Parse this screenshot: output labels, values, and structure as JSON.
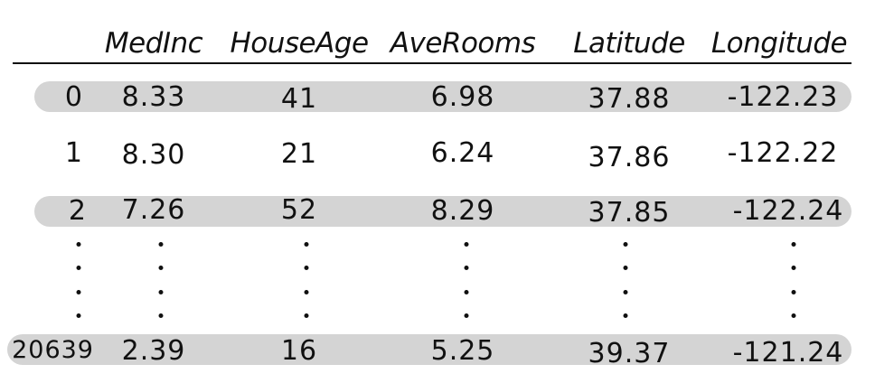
{
  "columns": [
    "MedInc",
    "HouseAge",
    "AveRooms",
    "Latitude",
    "Longitude"
  ],
  "rows": [
    {
      "index": "0",
      "values": [
        "8.33",
        "41",
        "6.98",
        "37.88",
        "-122.23"
      ],
      "shaded": true
    },
    {
      "index": "1",
      "values": [
        "8.30",
        "21",
        "6.24",
        "37.86",
        "-122.22"
      ],
      "shaded": false
    },
    {
      "index": "2",
      "values": [
        "7.26",
        "52",
        "8.29",
        "37.85",
        "-122.24"
      ],
      "shaded": true
    },
    {
      "index": "20639",
      "values": [
        "2.39",
        "16",
        "5.25",
        "39.37",
        "-121.24"
      ],
      "shaded": true
    }
  ],
  "ellipsis": "⋮",
  "colors": {
    "ink": "#111111",
    "band": "#d4d4d4"
  }
}
